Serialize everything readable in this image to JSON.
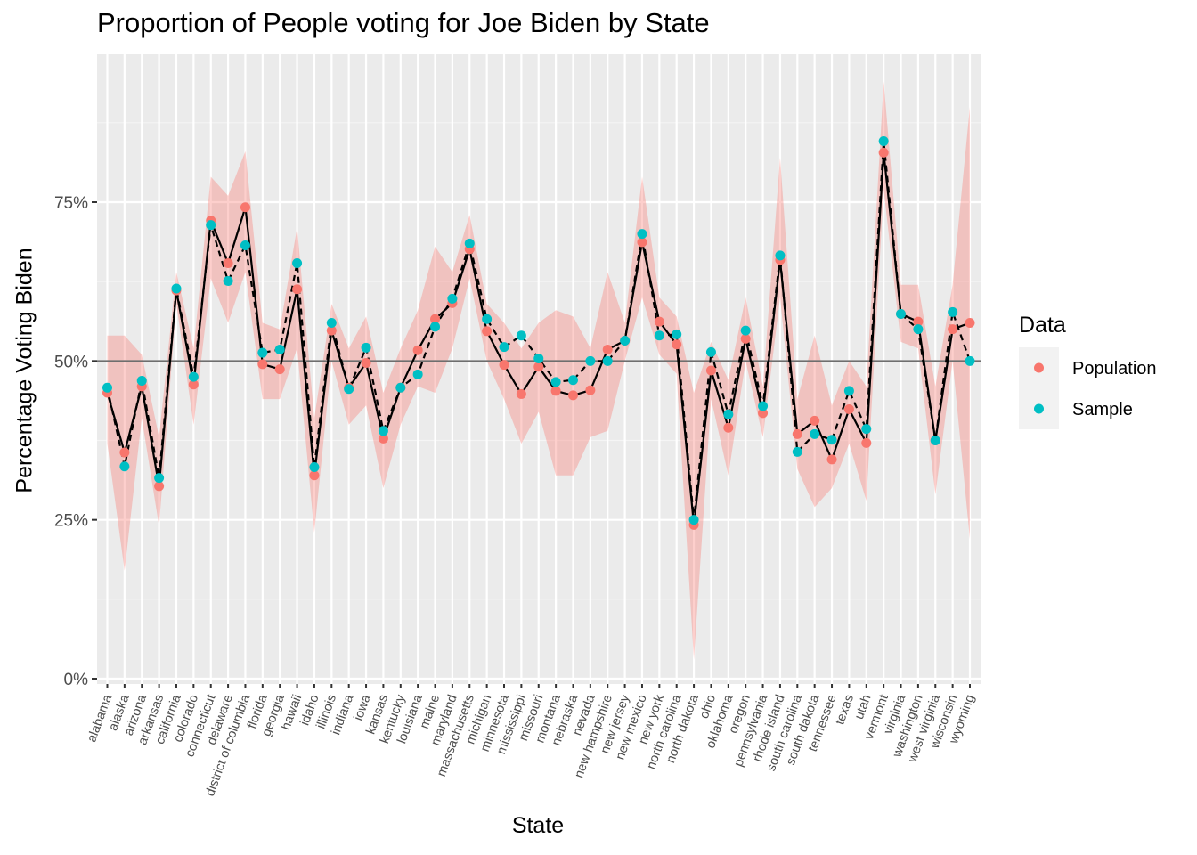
{
  "chart_data": {
    "type": "line",
    "title": "Proportion of People voting for Joe Biden by State",
    "xlabel": "State",
    "ylabel": "Percentage Voting Biden",
    "ylim": [
      0,
      1
    ],
    "y_ticks": [
      0,
      0.25,
      0.5,
      0.75
    ],
    "y_tick_labels": [
      "0%",
      "25%",
      "50%",
      "75%"
    ],
    "reference_line": 0.5,
    "grid": true,
    "legend": {
      "title": "Data",
      "position": "right"
    },
    "categories": [
      "alabama",
      "alaska",
      "arizona",
      "arkansas",
      "california",
      "colorado",
      "connecticut",
      "delaware",
      "district of columbia",
      "florida",
      "georgia",
      "hawaii",
      "idaho",
      "illinois",
      "indiana",
      "iowa",
      "kansas",
      "kentucky",
      "louisiana",
      "maine",
      "maryland",
      "massachusetts",
      "michigan",
      "minnesota",
      "mississippi",
      "missouri",
      "montana",
      "nebraska",
      "nevada",
      "new hampshire",
      "new jersey",
      "new mexico",
      "new york",
      "north carolina",
      "north dakota",
      "ohio",
      "oklahoma",
      "oregon",
      "pennsylvania",
      "rhode island",
      "south carolina",
      "south dakota",
      "tennessee",
      "texas",
      "utah",
      "vermont",
      "virginia",
      "washington",
      "west virginia",
      "wisconsin",
      "wyoming"
    ],
    "series": [
      {
        "name": "Population",
        "color": "#F8766D",
        "line_style": "solid",
        "values": [
          0.45,
          0.356,
          0.46,
          0.303,
          0.611,
          0.463,
          0.721,
          0.654,
          0.742,
          0.495,
          0.487,
          0.613,
          0.32,
          0.548,
          0.458,
          0.497,
          0.378,
          0.458,
          0.517,
          0.566,
          0.591,
          0.676,
          0.547,
          0.494,
          0.448,
          0.491,
          0.453,
          0.446,
          0.454,
          0.518,
          0.532,
          0.687,
          0.562,
          0.526,
          0.242,
          0.485,
          0.395,
          0.535,
          0.418,
          0.659,
          0.385,
          0.406,
          0.345,
          0.424,
          0.371,
          0.828,
          0.574,
          0.562,
          0.375,
          0.55,
          0.56
        ]
      },
      {
        "name": "Sample",
        "color": "#00BFC4",
        "line_style": "dashed",
        "values": [
          0.458,
          0.334,
          0.469,
          0.316,
          0.614,
          0.475,
          0.714,
          0.626,
          0.682,
          0.513,
          0.518,
          0.654,
          0.333,
          0.56,
          0.456,
          0.521,
          0.39,
          0.458,
          0.479,
          0.554,
          0.598,
          0.685,
          0.566,
          0.522,
          0.54,
          0.504,
          0.467,
          0.47,
          0.5,
          0.5,
          0.532,
          0.7,
          0.54,
          0.542,
          0.25,
          0.514,
          0.416,
          0.548,
          0.429,
          0.666,
          0.357,
          0.385,
          0.376,
          0.453,
          0.393,
          0.846,
          0.574,
          0.55,
          0.375,
          0.577,
          0.5
        ]
      }
    ],
    "ribbon": {
      "color": "#F8766D",
      "opacity": 0.35,
      "lower": [
        0.37,
        0.17,
        0.41,
        0.24,
        0.59,
        0.4,
        0.63,
        0.56,
        0.64,
        0.44,
        0.44,
        0.52,
        0.23,
        0.5,
        0.4,
        0.43,
        0.3,
        0.4,
        0.46,
        0.45,
        0.52,
        0.63,
        0.5,
        0.44,
        0.37,
        0.42,
        0.32,
        0.32,
        0.38,
        0.39,
        0.5,
        0.6,
        0.51,
        0.48,
        0.03,
        0.44,
        0.32,
        0.5,
        0.38,
        0.6,
        0.33,
        0.27,
        0.3,
        0.37,
        0.28,
        0.77,
        0.53,
        0.52,
        0.29,
        0.5,
        0.22
      ],
      "upper": [
        0.54,
        0.54,
        0.51,
        0.38,
        0.64,
        0.52,
        0.79,
        0.76,
        0.83,
        0.56,
        0.55,
        0.71,
        0.41,
        0.59,
        0.52,
        0.57,
        0.45,
        0.52,
        0.58,
        0.68,
        0.64,
        0.73,
        0.59,
        0.56,
        0.52,
        0.56,
        0.58,
        0.57,
        0.52,
        0.64,
        0.56,
        0.79,
        0.6,
        0.57,
        0.45,
        0.53,
        0.47,
        0.6,
        0.46,
        0.82,
        0.44,
        0.54,
        0.43,
        0.5,
        0.46,
        0.94,
        0.62,
        0.62,
        0.46,
        0.62,
        0.9
      ]
    }
  }
}
